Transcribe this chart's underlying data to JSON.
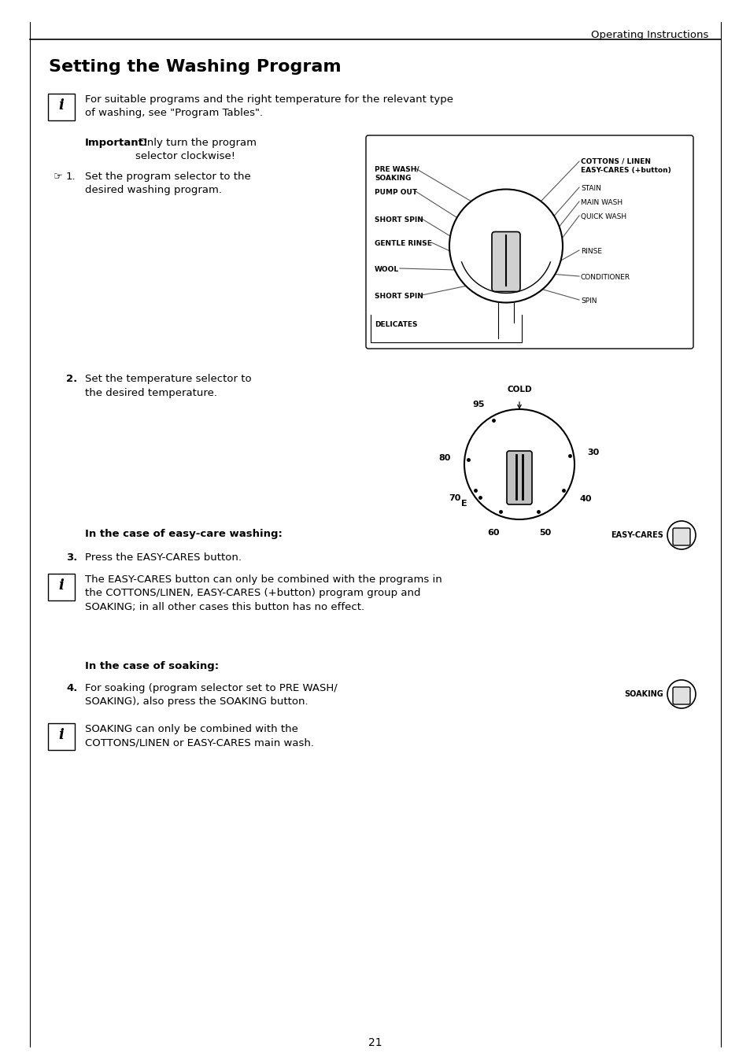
{
  "page_header": "Operating Instructions",
  "page_number": "21",
  "title": "Setting the Washing Program",
  "bg_color": "#ffffff",
  "text_color": "#000000"
}
